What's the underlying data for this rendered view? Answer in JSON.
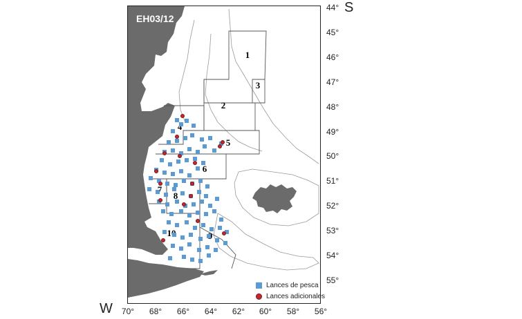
{
  "map": {
    "survey_code": "EH03/12",
    "south_label": "S",
    "west_label": "W",
    "lat_ticks": [
      "44°",
      "45°",
      "46°",
      "47°",
      "48°",
      "49°",
      "50°",
      "51°",
      "52°",
      "53°",
      "54°",
      "55°"
    ],
    "lon_ticks": [
      "70°",
      "68°",
      "66°",
      "64°",
      "62°",
      "60°",
      "58°",
      "56°"
    ],
    "zones": [
      "1",
      "2",
      "3",
      "4",
      "5",
      "6",
      "7",
      "8",
      "9",
      "10"
    ],
    "legend": {
      "fishing_hauls": "Lances de pesca",
      "additional_hauls": "Lances adicionales"
    },
    "colors": {
      "land": "#6b6b6b",
      "fishing_hauls": "#5b9bd5",
      "additional_hauls": "#c0282d"
    }
  }
}
